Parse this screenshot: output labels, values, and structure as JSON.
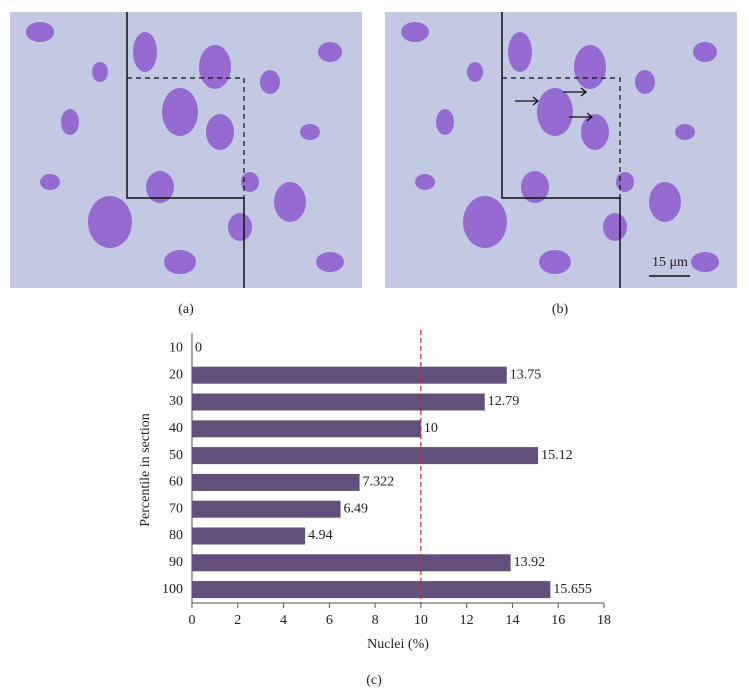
{
  "panels": [
    {
      "label": "(a)"
    },
    {
      "label": "(b)",
      "scale_bar": "15 μm"
    }
  ],
  "chart_data": {
    "type": "hbar",
    "caption": "(c)",
    "x_label": "Nuclei (%)",
    "y_label": "Percentile in section",
    "categories": [
      "10",
      "20",
      "30",
      "40",
      "50",
      "60",
      "70",
      "80",
      "90",
      "100"
    ],
    "values": [
      0,
      13.75,
      12.79,
      10,
      15.12,
      7.322,
      6.49,
      4.94,
      13.92,
      15.655
    ],
    "color": "#634f7c",
    "reference_line": 10,
    "reference_color": "#b03030",
    "xlim": [
      0,
      18
    ],
    "xticks": [
      0,
      2,
      4,
      6,
      8,
      10,
      12,
      14,
      16,
      18
    ],
    "grid": false
  }
}
